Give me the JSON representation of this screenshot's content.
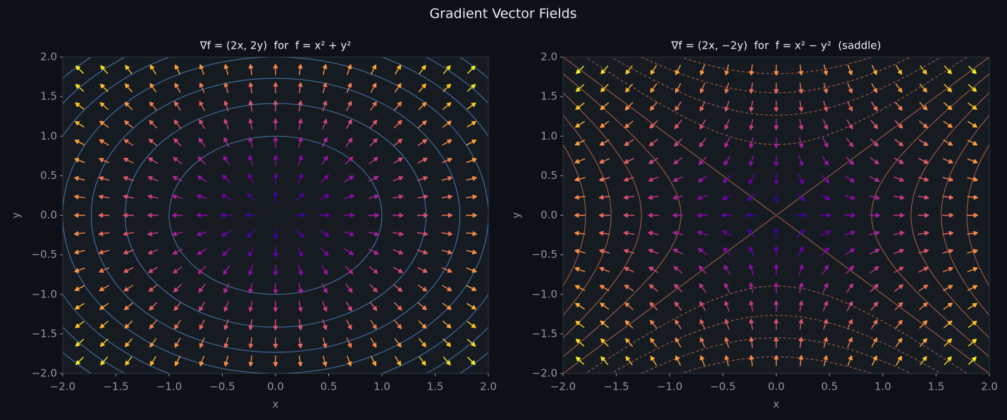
{
  "title": "Gradient Vector Fields",
  "chart_data": [
    {
      "type": "quiver",
      "title": "∇f = (2x, 2y)  for  f = x² + y²",
      "xlabel": "x",
      "ylabel": "y",
      "x": [
        -1.84,
        -1.61,
        -1.38,
        -1.15,
        -0.92,
        -0.69,
        -0.46,
        -0.23,
        0,
        0.23,
        0.46,
        0.69,
        0.92,
        1.15,
        1.38,
        1.61,
        1.84
      ],
      "y": [
        -1.84,
        -1.61,
        -1.38,
        -1.15,
        -0.92,
        -0.69,
        -0.46,
        -0.23,
        0,
        0.23,
        0.46,
        0.69,
        0.92,
        1.15,
        1.38,
        1.61,
        1.84
      ],
      "u": [
        -3.68,
        -3.22,
        -2.76,
        -2.3,
        -1.84,
        -1.38,
        -0.92,
        -0.46,
        0,
        0.46,
        0.92,
        1.38,
        1.84,
        2.3,
        2.76,
        3.22,
        3.68
      ],
      "v": [
        -3.68,
        -3.22,
        -2.76,
        -2.3,
        -1.84,
        -1.38,
        -0.92,
        -0.46,
        0,
        0.46,
        0.92,
        1.38,
        1.84,
        2.3,
        2.76,
        3.22,
        3.68
      ],
      "colormap": "plasma",
      "contour_levels": [
        1,
        2,
        3,
        4,
        5,
        6,
        7
      ],
      "contour_color": "#4f7fb8",
      "xlim": [
        -2,
        2
      ],
      "ylim": [
        -2,
        2
      ],
      "xticks": [
        {
          "value": -2,
          "label": "−2.0"
        },
        {
          "value": -1.5,
          "label": "−1.5"
        },
        {
          "value": -1,
          "label": "−1.0"
        },
        {
          "value": -0.5,
          "label": "−0.5"
        },
        {
          "value": 0,
          "label": "0.0"
        },
        {
          "value": 0.5,
          "label": "0.5"
        },
        {
          "value": 1,
          "label": "1.0"
        },
        {
          "value": 1.5,
          "label": "1.5"
        },
        {
          "value": 2,
          "label": "2.0"
        }
      ],
      "yticks": [
        {
          "value": -2,
          "label": "−2.0"
        },
        {
          "value": -1.5,
          "label": "−1.5"
        },
        {
          "value": -1,
          "label": "−1.0"
        },
        {
          "value": -0.5,
          "label": "−0.5"
        },
        {
          "value": 0,
          "label": "0.0"
        },
        {
          "value": 0.5,
          "label": "0.5"
        },
        {
          "value": 1,
          "label": "1.0"
        },
        {
          "value": 1.5,
          "label": "1.5"
        },
        {
          "value": 2,
          "label": "2.0"
        }
      ]
    },
    {
      "type": "quiver",
      "title": "∇f = (2x, −2y)  for  f = x² − y²  (saddle)",
      "xlabel": "x",
      "ylabel": "y",
      "x": [
        -1.84,
        -1.61,
        -1.38,
        -1.15,
        -0.92,
        -0.69,
        -0.46,
        -0.23,
        0,
        0.23,
        0.46,
        0.69,
        0.92,
        1.15,
        1.38,
        1.61,
        1.84
      ],
      "y": [
        -1.84,
        -1.61,
        -1.38,
        -1.15,
        -0.92,
        -0.69,
        -0.46,
        -0.23,
        0,
        0.23,
        0.46,
        0.69,
        0.92,
        1.15,
        1.38,
        1.61,
        1.84
      ],
      "u": [
        -3.68,
        -3.22,
        -2.76,
        -2.3,
        -1.84,
        -1.38,
        -0.92,
        -0.46,
        0,
        0.46,
        0.92,
        1.38,
        1.84,
        2.3,
        2.76,
        3.22,
        3.68
      ],
      "v": [
        3.68,
        3.22,
        2.76,
        2.3,
        1.84,
        1.38,
        0.92,
        0.46,
        0,
        -0.46,
        -0.92,
        -1.38,
        -1.84,
        -2.3,
        -2.76,
        -3.22,
        -3.68
      ],
      "colormap": "plasma",
      "contour_levels": [
        -4,
        -3.2,
        -2.4,
        -1.6,
        -0.8,
        0,
        0.8,
        1.6,
        2.4,
        3.2,
        4
      ],
      "contour_color": "#b8664c",
      "xlim": [
        -2,
        2
      ],
      "ylim": [
        -2,
        2
      ],
      "xticks": [
        {
          "value": -2,
          "label": "−2.0"
        },
        {
          "value": -1.5,
          "label": "−1.5"
        },
        {
          "value": -1,
          "label": "−1.0"
        },
        {
          "value": -0.5,
          "label": "−0.5"
        },
        {
          "value": 0,
          "label": "0.0"
        },
        {
          "value": 0.5,
          "label": "0.5"
        },
        {
          "value": 1,
          "label": "1.0"
        },
        {
          "value": 1.5,
          "label": "1.5"
        },
        {
          "value": 2,
          "label": "2.0"
        }
      ],
      "yticks": [
        {
          "value": -2,
          "label": "−2.0"
        },
        {
          "value": -1.5,
          "label": "−1.5"
        },
        {
          "value": -1,
          "label": "−1.0"
        },
        {
          "value": -0.5,
          "label": "−0.5"
        },
        {
          "value": 0,
          "label": "0.0"
        },
        {
          "value": 0.5,
          "label": "0.5"
        },
        {
          "value": 1,
          "label": "1.0"
        },
        {
          "value": 1.5,
          "label": "1.5"
        },
        {
          "value": 2,
          "label": "2.0"
        }
      ]
    }
  ]
}
